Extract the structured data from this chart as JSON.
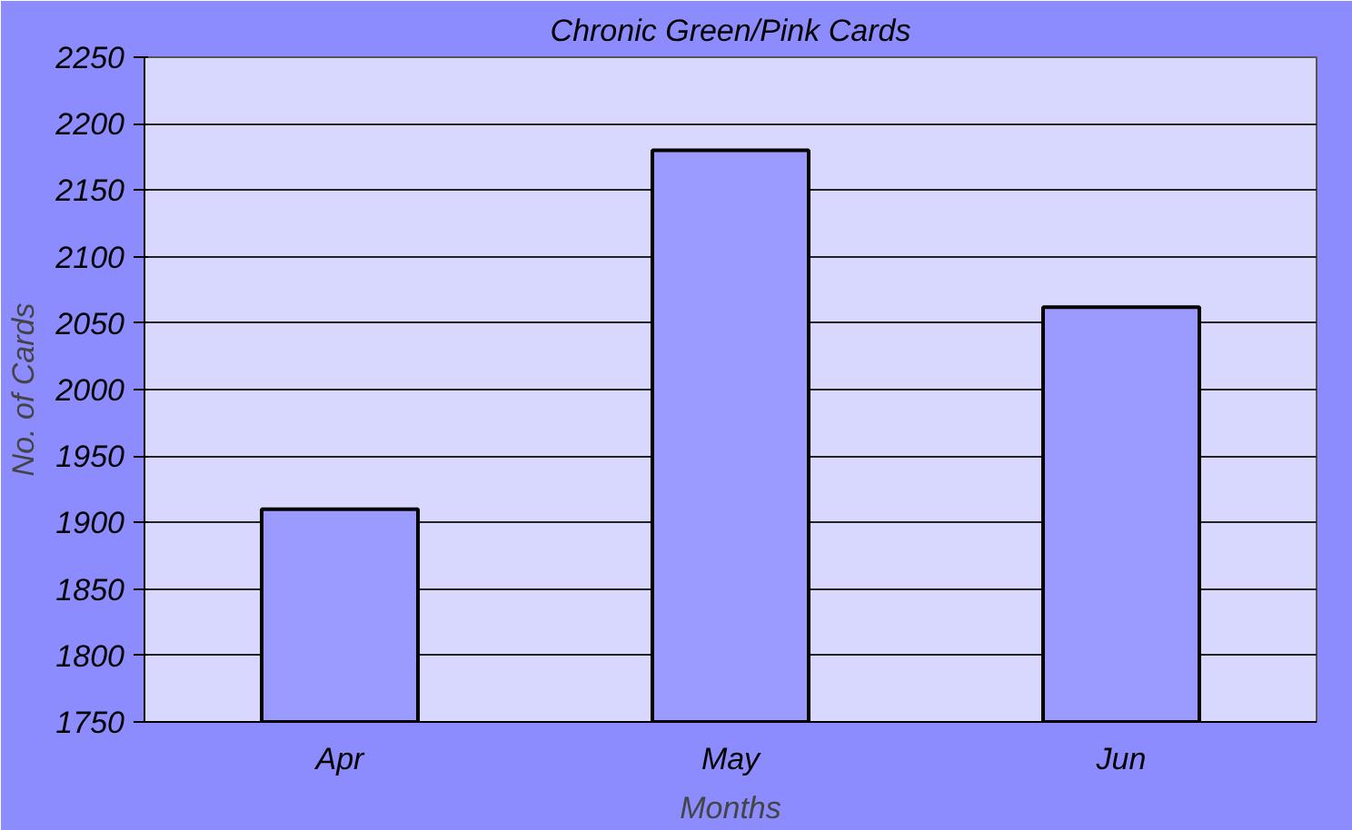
{
  "chart_data": {
    "type": "bar",
    "title": "Chronic Green/Pink Cards",
    "xlabel": "Months",
    "ylabel": "No. of Cards",
    "categories": [
      "Apr",
      "May",
      "Jun"
    ],
    "values": [
      1910,
      2180,
      2062
    ],
    "color": "#9a9aff",
    "ylim": [
      1750,
      2250
    ],
    "yticks": [
      1750,
      1800,
      1850,
      1900,
      1950,
      2000,
      2050,
      2100,
      2150,
      2200,
      2250
    ],
    "grid": "y"
  }
}
